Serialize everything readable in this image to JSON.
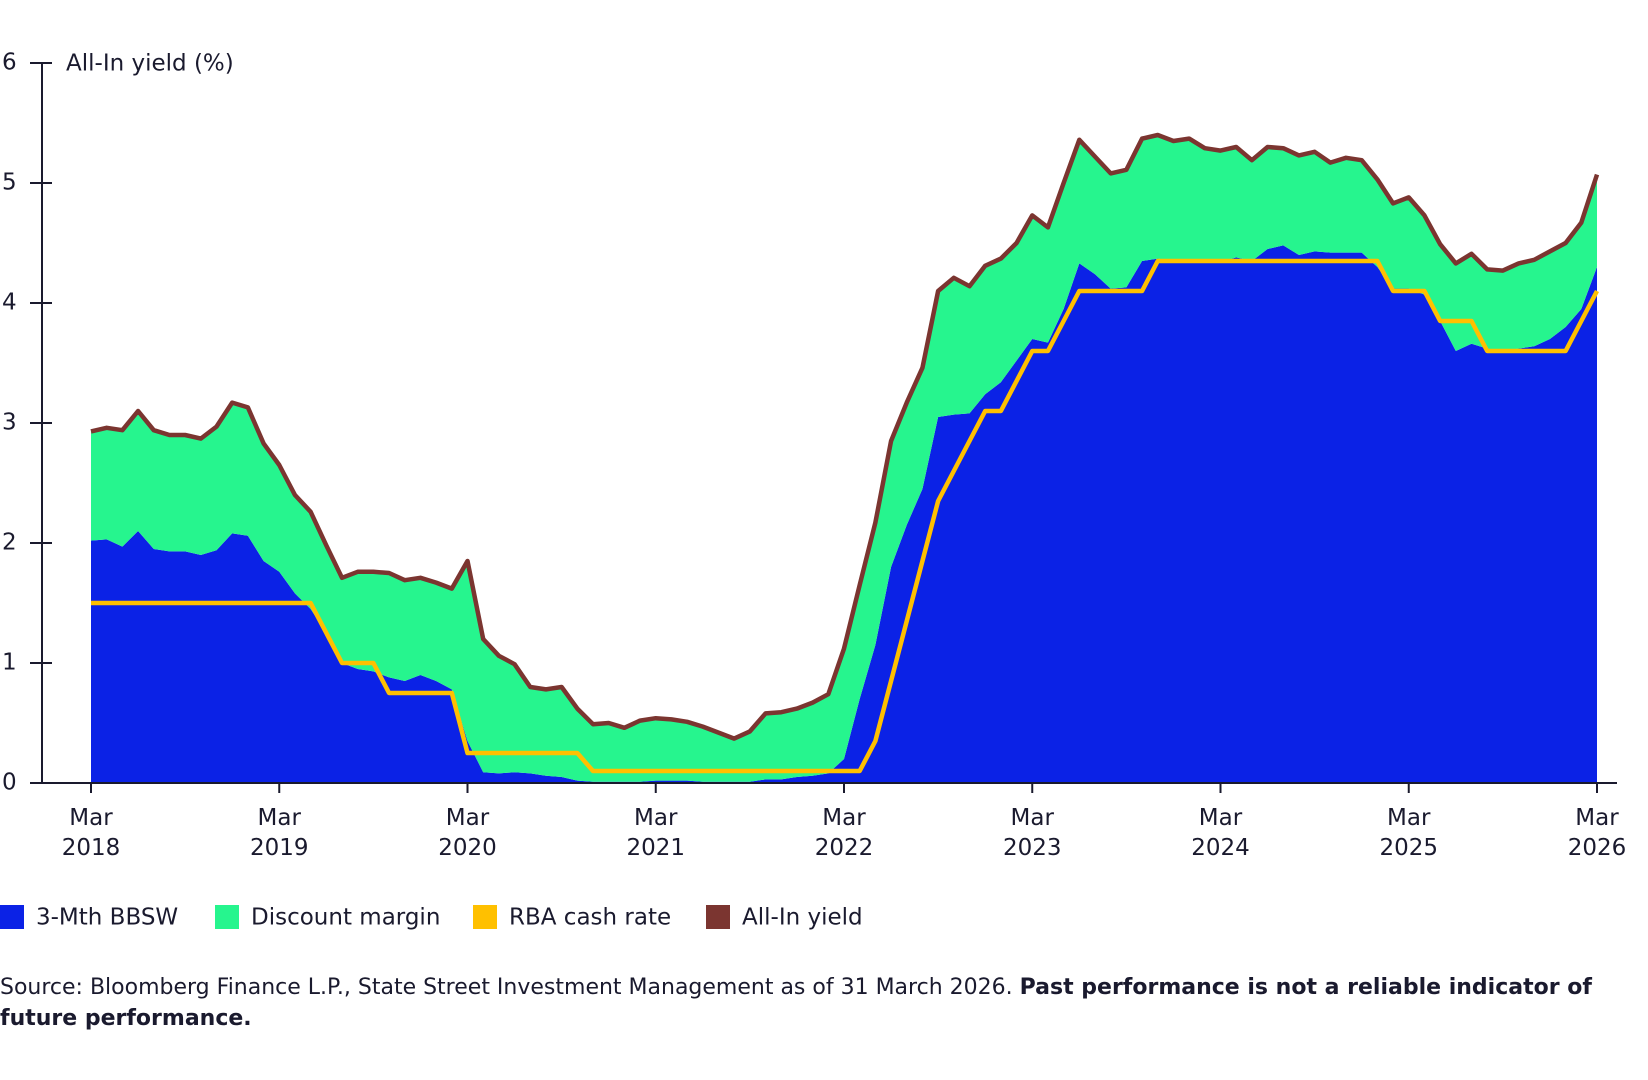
{
  "chart_data": {
    "type": "area",
    "stacked": true,
    "y_label": "All-In yield (%)",
    "ylim": [
      0,
      6
    ],
    "yticks": [
      0,
      1,
      2,
      3,
      4,
      5,
      6
    ],
    "categories": [
      "Mar 2018",
      null,
      null,
      null,
      null,
      null,
      null,
      null,
      null,
      null,
      null,
      null,
      "Mar 2019",
      null,
      null,
      null,
      null,
      null,
      null,
      null,
      null,
      null,
      null,
      null,
      "Mar 2020",
      null,
      null,
      null,
      null,
      null,
      null,
      null,
      null,
      null,
      null,
      null,
      "Mar 2021",
      null,
      null,
      null,
      null,
      null,
      null,
      null,
      null,
      null,
      null,
      null,
      "Mar 2022",
      null,
      null,
      null,
      null,
      null,
      null,
      null,
      null,
      null,
      null,
      null,
      "Mar 2023",
      null,
      null,
      null,
      null,
      null,
      null,
      null,
      null,
      null,
      null,
      null,
      "Mar 2024",
      null,
      null,
      null,
      null,
      null,
      null,
      null,
      null,
      null,
      null,
      null,
      "Mar 2025",
      null,
      null,
      null,
      null,
      null,
      null,
      null,
      null,
      null,
      null,
      null,
      "Mar 2026"
    ],
    "series": [
      {
        "name": "3-Mth BBSW",
        "type": "area",
        "color": "#0b22e6",
        "values": [
          2.02,
          2.03,
          1.97,
          2.1,
          1.95,
          1.93,
          1.93,
          1.9,
          1.94,
          2.08,
          2.06,
          1.85,
          1.76,
          1.58,
          1.45,
          1.25,
          1.0,
          0.95,
          0.93,
          0.88,
          0.85,
          0.9,
          0.85,
          0.78,
          0.35,
          0.09,
          0.08,
          0.09,
          0.08,
          0.06,
          0.05,
          0.02,
          0.01,
          0.01,
          0.01,
          0.01,
          0.02,
          0.02,
          0.02,
          0.01,
          0.01,
          0.01,
          0.01,
          0.03,
          0.03,
          0.05,
          0.06,
          0.08,
          0.2,
          0.7,
          1.15,
          1.8,
          2.15,
          2.45,
          3.05,
          3.07,
          3.08,
          3.24,
          3.34,
          3.52,
          3.7,
          3.67,
          3.95,
          4.33,
          4.24,
          4.12,
          4.13,
          4.35,
          4.37,
          4.35,
          4.35,
          4.34,
          4.34,
          4.38,
          4.35,
          4.45,
          4.48,
          4.4,
          4.43,
          4.42,
          4.42,
          4.42,
          4.3,
          4.12,
          4.12,
          4.07,
          3.85,
          3.6,
          3.66,
          3.62,
          3.6,
          3.62,
          3.64,
          3.7,
          3.8,
          3.95,
          4.3
        ]
      },
      {
        "name": "Discount margin",
        "type": "area",
        "color": "#26f58e",
        "values": [
          0.91,
          0.93,
          0.97,
          1.0,
          0.99,
          0.97,
          0.97,
          0.97,
          1.03,
          1.09,
          1.07,
          0.98,
          0.89,
          0.82,
          0.81,
          0.73,
          0.71,
          0.81,
          0.83,
          0.87,
          0.84,
          0.81,
          0.82,
          0.84,
          1.5,
          1.11,
          0.98,
          0.9,
          0.72,
          0.72,
          0.75,
          0.6,
          0.48,
          0.49,
          0.45,
          0.51,
          0.52,
          0.51,
          0.49,
          0.46,
          0.41,
          0.36,
          0.42,
          0.55,
          0.56,
          0.57,
          0.61,
          0.66,
          0.92,
          0.95,
          1.02,
          1.05,
          1.02,
          1.01,
          1.05,
          1.14,
          1.06,
          1.07,
          1.03,
          0.98,
          1.03,
          0.96,
          1.05,
          1.03,
          0.98,
          0.96,
          0.98,
          1.02,
          1.03,
          1.0,
          1.02,
          0.95,
          0.93,
          0.92,
          0.84,
          0.85,
          0.81,
          0.83,
          0.83,
          0.75,
          0.79,
          0.77,
          0.73,
          0.71,
          0.76,
          0.66,
          0.64,
          0.73,
          0.75,
          0.66,
          0.67,
          0.71,
          0.72,
          0.73,
          0.7,
          0.72,
          0.77
        ]
      },
      {
        "name": "RBA cash rate",
        "type": "line",
        "color": "#ffc000",
        "values": [
          1.5,
          1.5,
          1.5,
          1.5,
          1.5,
          1.5,
          1.5,
          1.5,
          1.5,
          1.5,
          1.5,
          1.5,
          1.5,
          1.5,
          1.5,
          1.25,
          1.0,
          1.0,
          1.0,
          0.75,
          0.75,
          0.75,
          0.75,
          0.75,
          0.25,
          0.25,
          0.25,
          0.25,
          0.25,
          0.25,
          0.25,
          0.25,
          0.1,
          0.1,
          0.1,
          0.1,
          0.1,
          0.1,
          0.1,
          0.1,
          0.1,
          0.1,
          0.1,
          0.1,
          0.1,
          0.1,
          0.1,
          0.1,
          0.1,
          0.1,
          0.35,
          0.85,
          1.35,
          1.85,
          2.35,
          2.6,
          2.85,
          3.1,
          3.1,
          3.35,
          3.6,
          3.6,
          3.85,
          4.1,
          4.1,
          4.1,
          4.1,
          4.1,
          4.35,
          4.35,
          4.35,
          4.35,
          4.35,
          4.35,
          4.35,
          4.35,
          4.35,
          4.35,
          4.35,
          4.35,
          4.35,
          4.35,
          4.35,
          4.1,
          4.1,
          4.1,
          3.85,
          3.85,
          3.85,
          3.6,
          3.6,
          3.6,
          3.6,
          3.6,
          3.6,
          3.85,
          4.1
        ]
      },
      {
        "name": "All-In yield",
        "type": "line",
        "color": "#7b3530",
        "values": [
          2.93,
          2.96,
          2.94,
          3.1,
          2.94,
          2.9,
          2.9,
          2.87,
          2.97,
          3.17,
          3.13,
          2.83,
          2.65,
          2.4,
          2.26,
          1.98,
          1.71,
          1.76,
          1.76,
          1.75,
          1.69,
          1.71,
          1.67,
          1.62,
          1.85,
          1.2,
          1.06,
          0.99,
          0.8,
          0.78,
          0.8,
          0.62,
          0.49,
          0.5,
          0.46,
          0.52,
          0.54,
          0.53,
          0.51,
          0.47,
          0.42,
          0.37,
          0.43,
          0.58,
          0.59,
          0.62,
          0.67,
          0.74,
          1.12,
          1.65,
          2.17,
          2.85,
          3.17,
          3.46,
          4.1,
          4.21,
          4.14,
          4.31,
          4.37,
          4.5,
          4.73,
          4.63,
          5.0,
          5.36,
          5.22,
          5.08,
          5.11,
          5.37,
          5.4,
          5.35,
          5.37,
          5.29,
          5.27,
          5.3,
          5.19,
          5.3,
          5.29,
          5.23,
          5.26,
          5.17,
          5.21,
          5.19,
          5.03,
          4.83,
          4.88,
          4.73,
          4.49,
          4.33,
          4.41,
          4.28,
          4.27,
          4.33,
          4.36,
          4.43,
          4.5,
          4.67,
          5.07
        ]
      }
    ],
    "source": "Source: Bloomberg Finance L.P., State Street Investment Management as of 31 March 2026.",
    "source_bold": "Past performance is not a reliable indicator of future performance."
  }
}
